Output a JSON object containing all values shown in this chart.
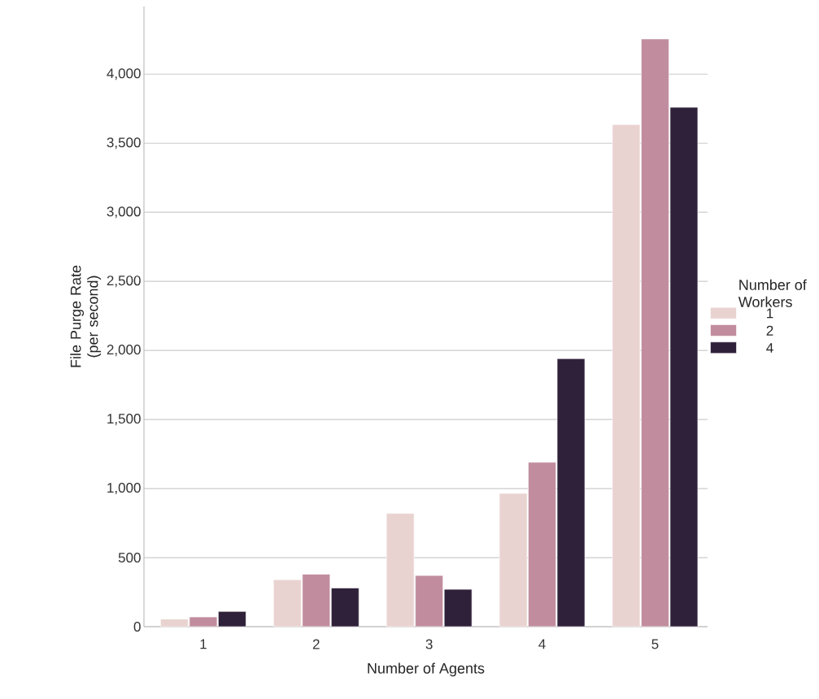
{
  "chart_data": {
    "type": "bar",
    "xlabel": "Number of Agents",
    "ylabel": "File Purge Rate (per second)",
    "legend_title": "Number of Workers",
    "categories": [
      "1",
      "2",
      "3",
      "4",
      "5"
    ],
    "series": [
      {
        "name": "1",
        "color": "#e9d3d0",
        "values": [
          55,
          340,
          820,
          965,
          3635
        ]
      },
      {
        "name": "2",
        "color": "#c18d9e",
        "values": [
          70,
          380,
          370,
          1190,
          4255
        ]
      },
      {
        "name": "4",
        "color": "#30213a",
        "values": [
          110,
          280,
          270,
          1940,
          3760
        ]
      }
    ],
    "ylim": [
      0,
      4490
    ],
    "yticks": [
      0,
      500,
      {
        "value": 1000,
        "label": "1,000"
      },
      {
        "value": 1500,
        "label": "1,500"
      },
      {
        "value": 2000,
        "label": "2,000"
      },
      {
        "value": 2500,
        "label": "2,500"
      },
      {
        "value": 3000,
        "label": "3,000"
      },
      {
        "value": 3500,
        "label": "3,500"
      },
      {
        "value": 4000,
        "label": "4,000"
      }
    ],
    "grid": "y",
    "legend": "right"
  }
}
